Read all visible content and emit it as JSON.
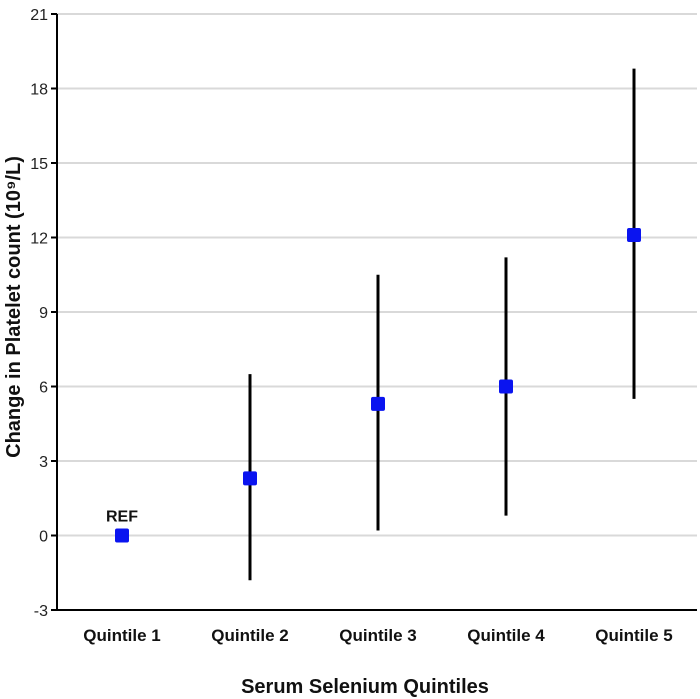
{
  "chart_data": {
    "type": "scatter",
    "subtype": "point-estimate-with-error-bars",
    "categories": [
      "Quintile 1",
      "Quintile 2",
      "Quintile 3",
      "Quintile 4",
      "Quintile 5"
    ],
    "series": [
      {
        "values": [
          0,
          2.3,
          5.3,
          6.0,
          12.1
        ],
        "lower": [
          null,
          -1.8,
          0.2,
          0.8,
          5.5
        ],
        "upper": [
          null,
          6.5,
          10.5,
          11.2,
          18.8
        ]
      }
    ],
    "annotations": [
      {
        "category": "Quintile 1",
        "text": "REF"
      }
    ],
    "xlabel": "Serum Selenium Quintiles",
    "ylabel": "Change in Platelet count (10⁹/L)",
    "ylim": [
      -3,
      21
    ],
    "yticks": [
      -3,
      0,
      3,
      6,
      9,
      12,
      15,
      18,
      21
    ],
    "grid": true,
    "legend": "none",
    "colors": {
      "marker": "#0a14f0",
      "errorbar": "#000000",
      "grid": "#d9d9d9",
      "axis": "#000000"
    }
  }
}
